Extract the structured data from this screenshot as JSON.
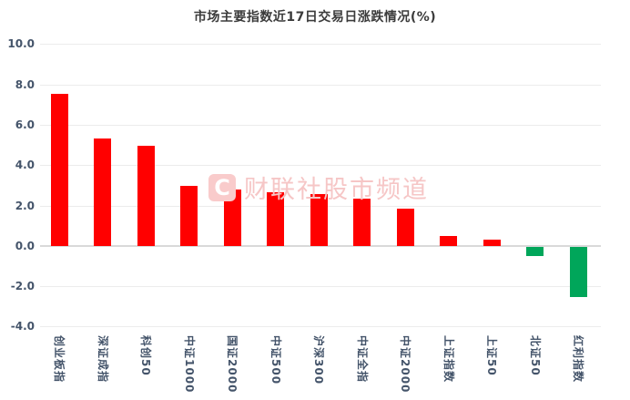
{
  "title": "市场主要指数近17日交易日涨跌情况(%)",
  "watermark": {
    "logo_letter": "C",
    "text": "财联社股市频道"
  },
  "colors": {
    "positive_bar": "#ff0000",
    "negative_bar": "#00a65a",
    "grid": "#ececec",
    "zero_line": "#d9d9d9",
    "axis_text": "#44546a",
    "title_text": "#3b3b3b",
    "watermark_text": "#f6c6c6",
    "watermark_logo_bg": "#f9cbcb",
    "background": "#ffffff"
  },
  "chart_data": {
    "type": "bar",
    "title": "市场主要指数近17日交易日涨跌情况(%)",
    "categories": [
      "创业板指",
      "深证成指",
      "科创50",
      "中证1000",
      "国证2000",
      "中证500",
      "沪深300",
      "中证全指",
      "中证2000",
      "上证指数",
      "上证50",
      "北证50",
      "红利指数"
    ],
    "values": [
      7.55,
      5.3,
      4.95,
      2.95,
      2.8,
      2.65,
      2.55,
      2.35,
      1.85,
      0.5,
      0.3,
      -0.45,
      -2.5
    ],
    "xlabel": "",
    "ylabel": "",
    "ylim": [
      -4.0,
      10.0
    ],
    "yticks": [
      10.0,
      8.0,
      6.0,
      4.0,
      2.0,
      0.0,
      -2.0,
      -4.0
    ],
    "grid": true,
    "legend": "none",
    "positive_color": "#ff0000",
    "negative_color": "#00a65a"
  }
}
